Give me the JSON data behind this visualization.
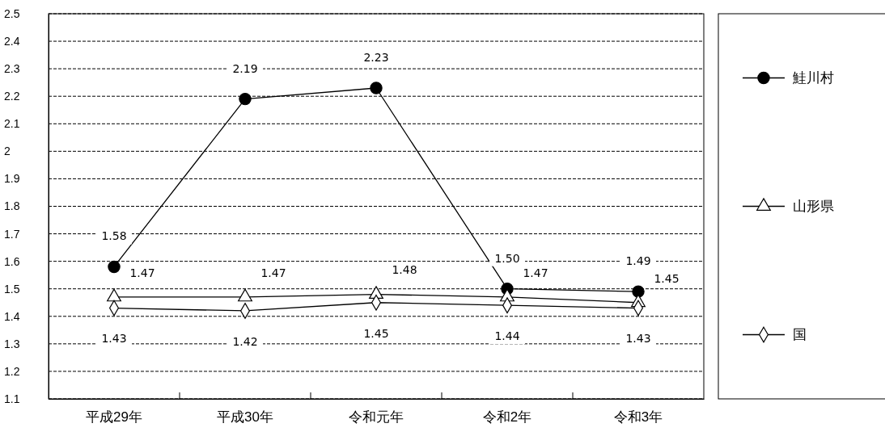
{
  "chart_data": {
    "type": "line",
    "categories": [
      "平成29年",
      "平成30年",
      "令和元年",
      "令和2年",
      "令和3年"
    ],
    "series": [
      {
        "name": "鮭川村",
        "color": "#000000",
        "marker": "circle",
        "values": [
          1.58,
          2.19,
          2.23,
          1.5,
          1.49
        ],
        "value_labels": [
          "1.58",
          "2.19",
          "2.23",
          "1.50",
          "1.49"
        ]
      },
      {
        "name": "山形県",
        "color": "#000000",
        "marker": "triangle",
        "values": [
          1.47,
          1.47,
          1.48,
          1.47,
          1.45
        ],
        "value_labels": [
          "1.47",
          "1.47",
          "1.48",
          "1.47",
          "1.45"
        ]
      },
      {
        "name": "国",
        "color": "#000000",
        "marker": "diamond",
        "values": [
          1.43,
          1.42,
          1.45,
          1.44,
          1.43
        ],
        "value_labels": [
          "1.43",
          "1.42",
          "1.45",
          "1.44",
          "1.43"
        ]
      }
    ],
    "ylim": [
      1.1,
      2.5
    ],
    "yticks": [
      1.1,
      1.2,
      1.3,
      1.4,
      1.5,
      1.6,
      1.7,
      1.8,
      1.9,
      {
        "value": 2,
        "label": "2"
      },
      2.1,
      2.2,
      2.3,
      2.4,
      2.5
    ],
    "grid": "y",
    "legend": "right",
    "line_style": "solid"
  }
}
